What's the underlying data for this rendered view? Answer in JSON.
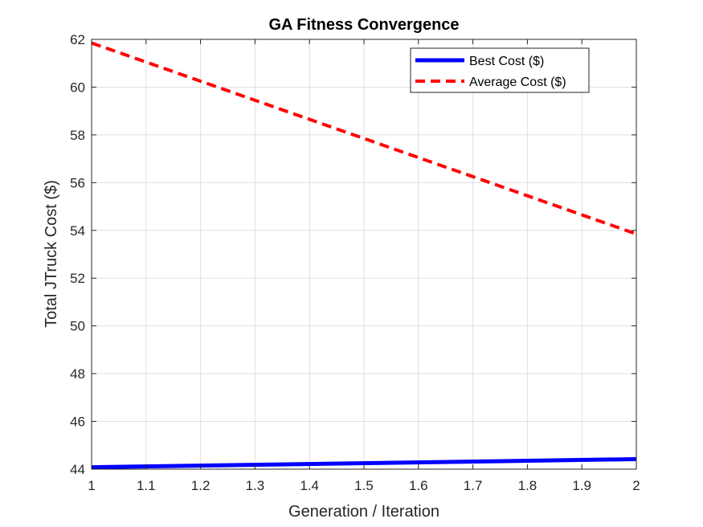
{
  "chart_data": {
    "type": "line",
    "title": "GA Fitness Convergence",
    "xlabel": "Generation / Iteration",
    "ylabel": "Total JTruck Cost ($)",
    "xlim": [
      1,
      2
    ],
    "ylim": [
      44,
      62
    ],
    "xticks": [
      "1",
      "1.1",
      "1.2",
      "1.3",
      "1.4",
      "1.5",
      "1.6",
      "1.7",
      "1.8",
      "1.9",
      "2"
    ],
    "yticks": [
      "44",
      "46",
      "48",
      "50",
      "52",
      "54",
      "56",
      "58",
      "60",
      "62"
    ],
    "grid": true,
    "legend_position": "top-right",
    "x": [
      1,
      2
    ],
    "series": [
      {
        "name": "Best Cost ($)",
        "values": [
          44.08,
          44.42
        ],
        "color": "#0000ff",
        "style": "solid"
      },
      {
        "name": "Average Cost ($)",
        "values": [
          61.85,
          53.85
        ],
        "color": "#ff0000",
        "style": "dashed"
      }
    ]
  }
}
